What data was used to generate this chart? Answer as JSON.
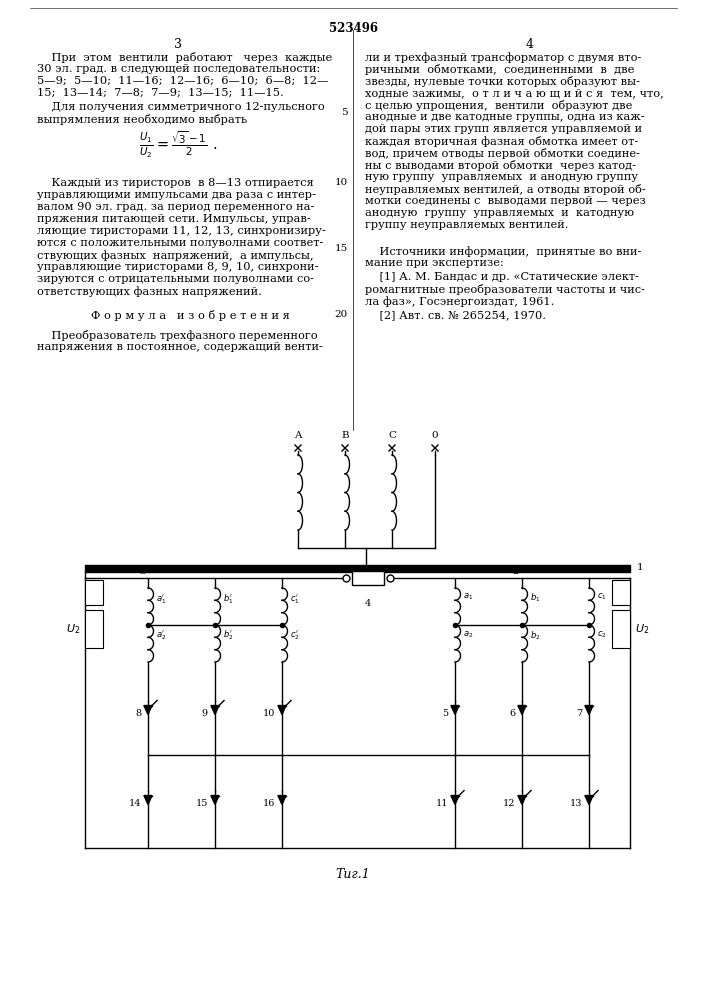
{
  "background_color": "#ffffff",
  "title": "523496",
  "col3": "3",
  "col4": "4",
  "fig_caption": "Τиг.1",
  "lw": 1.0,
  "lw_thick": 5
}
